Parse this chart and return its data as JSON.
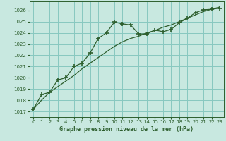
{
  "title": "Graphe pression niveau de la mer (hPa)",
  "bg_color": "#c8e8e0",
  "grid_color": "#88c8c0",
  "line_color": "#2d5e2d",
  "marker_color": "#2d5e2d",
  "xlim": [
    -0.5,
    23.5
  ],
  "ylim": [
    1016.5,
    1026.8
  ],
  "xticks": [
    0,
    1,
    2,
    3,
    4,
    5,
    6,
    7,
    8,
    9,
    10,
    11,
    12,
    13,
    14,
    15,
    16,
    17,
    18,
    19,
    20,
    21,
    22,
    23
  ],
  "yticks": [
    1017,
    1018,
    1019,
    1020,
    1021,
    1022,
    1023,
    1024,
    1025,
    1026
  ],
  "line1_x": [
    0,
    1,
    2,
    3,
    4,
    5,
    6,
    7,
    8,
    9,
    10,
    11,
    12,
    13,
    14,
    15,
    16,
    17,
    18,
    19,
    20,
    21,
    22,
    23
  ],
  "line1_y": [
    1017.2,
    1018.5,
    1018.7,
    1019.8,
    1020.0,
    1021.0,
    1021.3,
    1022.2,
    1023.5,
    1024.0,
    1024.95,
    1024.8,
    1024.7,
    1023.9,
    1023.9,
    1024.25,
    1024.1,
    1024.3,
    1024.9,
    1025.3,
    1025.8,
    1026.05,
    1026.1,
    1026.2
  ],
  "line2_x": [
    0,
    1,
    2,
    3,
    4,
    5,
    6,
    7,
    8,
    9,
    10,
    11,
    12,
    13,
    14,
    15,
    16,
    17,
    18,
    19,
    20,
    21,
    22,
    23
  ],
  "line2_y": [
    1017.2,
    1018.0,
    1018.7,
    1019.2,
    1019.7,
    1020.2,
    1020.8,
    1021.3,
    1021.8,
    1022.3,
    1022.8,
    1023.2,
    1023.5,
    1023.7,
    1024.0,
    1024.2,
    1024.5,
    1024.7,
    1025.0,
    1025.3,
    1025.6,
    1025.9,
    1026.1,
    1026.3
  ]
}
